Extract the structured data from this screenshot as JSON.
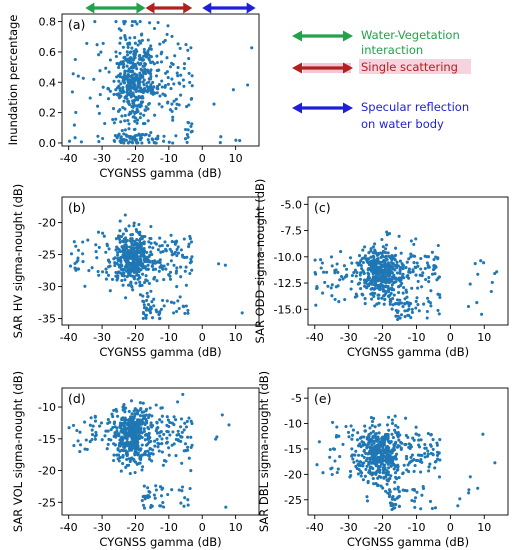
{
  "legend": {
    "items": [
      {
        "label_lines": [
          "Water-Vegetation",
          "interaction"
        ],
        "color": "#22a24a",
        "band_x": [
          -35,
          -17
        ]
      },
      {
        "label_lines": [
          "Single scattering"
        ],
        "color": "#b0221f",
        "band_x": [
          -17,
          -3
        ]
      },
      {
        "label_lines": [
          "Specular reflection",
          "on water body"
        ],
        "color": "#1f1fd6",
        "band_x": [
          0,
          16
        ]
      }
    ]
  },
  "chart_data": [
    {
      "type": "scatter",
      "panel_label": "(a)",
      "xlabel": "CYGNSS gamma (dB)",
      "ylabel": "Inundation percentage",
      "xlim": [
        -42,
        17
      ],
      "ylim": [
        -0.02,
        0.85
      ],
      "xticks": [
        -40,
        -30,
        -20,
        -10,
        0,
        10
      ],
      "yticks": [
        0.0,
        0.2,
        0.4,
        0.6,
        0.8
      ],
      "point_color": "#1f77b4",
      "points_summary": {
        "x_center": -21,
        "x_spread": 5.5,
        "y_range": [
          0.0,
          0.8
        ],
        "count": 600
      }
    },
    {
      "type": "scatter",
      "panel_label": "(b)",
      "xlabel": "CYGNSS gamma (dB)",
      "ylabel": "SAR HV sigma-nought (dB)",
      "xlim": [
        -42,
        17
      ],
      "ylim": [
        -36,
        -16
      ],
      "xticks": [
        -40,
        -30,
        -20,
        -10,
        0,
        10
      ],
      "yticks": [
        -35,
        -30,
        -25,
        -20
      ],
      "point_color": "#1f77b4",
      "points_summary": {
        "x_center": -21,
        "y_center": -25.5,
        "y_range": [
          -35,
          -17
        ],
        "count": 600
      }
    },
    {
      "type": "scatter",
      "panel_label": "(c)",
      "xlabel": "CYGNSS gamma (dB)",
      "ylabel": "SAR ODD sigma-nought (dB)",
      "xlim": [
        -42,
        17
      ],
      "ylim": [
        -16.5,
        -4.3
      ],
      "xticks": [
        -40,
        -30,
        -20,
        -10,
        0,
        10
      ],
      "yticks": [
        -15.0,
        -12.5,
        -10.0,
        -7.5,
        -5.0
      ],
      "point_color": "#1f77b4",
      "points_summary": {
        "x_center": -21,
        "y_center": -11.5,
        "y_range": [
          -16,
          -4.5
        ],
        "count": 600
      }
    },
    {
      "type": "scatter",
      "panel_label": "(d)",
      "xlabel": "CYGNSS gamma (dB)",
      "ylabel": "SAR VOL sigma-nought (dB)",
      "xlim": [
        -42,
        17
      ],
      "ylim": [
        -27,
        -7
      ],
      "xticks": [
        -40,
        -30,
        -20,
        -10,
        0,
        10
      ],
      "yticks": [
        -25,
        -20,
        -15,
        -10
      ],
      "point_color": "#1f77b4",
      "points_summary": {
        "x_center": -21,
        "y_center": -14.5,
        "y_range": [
          -26,
          -8
        ],
        "count": 600
      }
    },
    {
      "type": "scatter",
      "panel_label": "(e)",
      "xlabel": "CYGNSS gamma (dB)",
      "ylabel": "SAR DBL sigma-nought (dB)",
      "xlim": [
        -42,
        17
      ],
      "ylim": [
        -28,
        -3
      ],
      "xticks": [
        -40,
        -30,
        -20,
        -10,
        0,
        10
      ],
      "yticks": [
        -25,
        -20,
        -15,
        -10,
        -5
      ],
      "point_color": "#1f77b4",
      "points_summary": {
        "x_center": -21,
        "y_center": -16,
        "y_range": [
          -27,
          -4
        ],
        "count": 600
      }
    }
  ]
}
